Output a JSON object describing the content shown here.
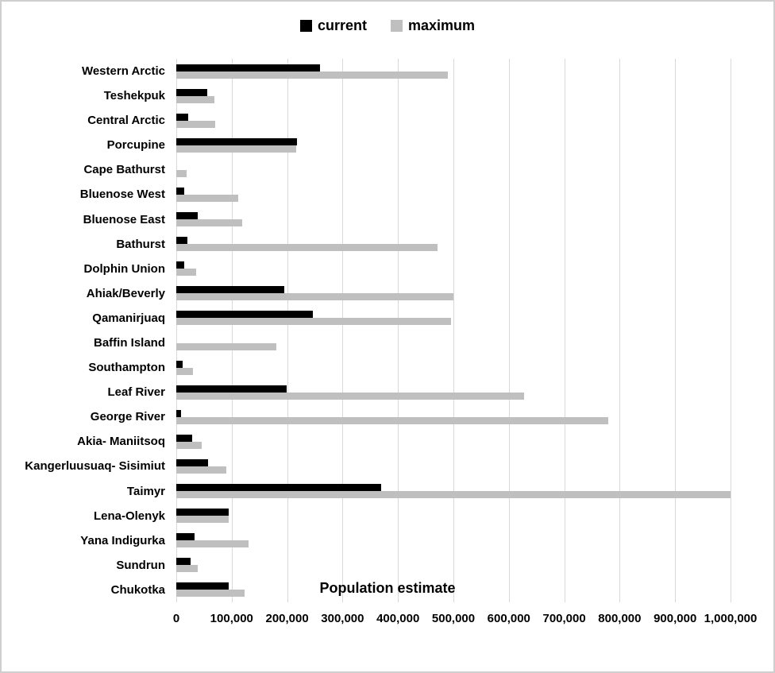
{
  "legend": {
    "items": [
      {
        "label": "current",
        "color": "#000000"
      },
      {
        "label": "maximum",
        "color": "#bfbfbf"
      }
    ]
  },
  "colors": {
    "background": "#ffffff",
    "border": "#cfcfcf",
    "gridline": "#d9d9d9",
    "text": "#000000",
    "current": "#000000",
    "maximum": "#bfbfbf"
  },
  "chart_data": {
    "type": "bar",
    "orientation": "horizontal",
    "title": "",
    "xlabel": "Population estimate",
    "ylabel": "",
    "xlim": [
      0,
      1000000
    ],
    "x_ticks": [
      0,
      100000,
      200000,
      300000,
      400000,
      500000,
      600000,
      700000,
      800000,
      900000,
      1000000
    ],
    "grid": "vertical",
    "legend_position": "top-center",
    "categories": [
      "Western Arctic",
      "Teshekpuk",
      "Central Arctic",
      "Porcupine",
      "Cape Bathurst",
      "Bluenose West",
      "Bluenose East",
      "Bathurst",
      "Dolphin Union",
      "Ahiak/Beverly",
      "Qamanirjuaq",
      "Baffin Island",
      "Southampton",
      "Leaf River",
      "George River",
      "Akia- Maniitsoq",
      "Kangerluusuaq- Sisimiut",
      "Taimyr",
      "Lena-Olenyk",
      "Yana Indigurka",
      "Sundrun",
      "Chukotka"
    ],
    "series": [
      {
        "name": "current",
        "color": "#000000",
        "values": [
          259000,
          56000,
          21000,
          218000,
          0,
          15000,
          39000,
          20000,
          15000,
          195000,
          246000,
          0,
          11000,
          199000,
          9000,
          28000,
          57000,
          370000,
          95000,
          33000,
          26000,
          94000
        ]
      },
      {
        "name": "maximum",
        "color": "#bfbfbf",
        "values": [
          490000,
          69000,
          70000,
          216000,
          19000,
          112000,
          119000,
          472000,
          36000,
          500000,
          495000,
          180000,
          30000,
          628000,
          780000,
          46000,
          90000,
          1000000,
          95000,
          130000,
          39000,
          123000
        ]
      }
    ]
  }
}
